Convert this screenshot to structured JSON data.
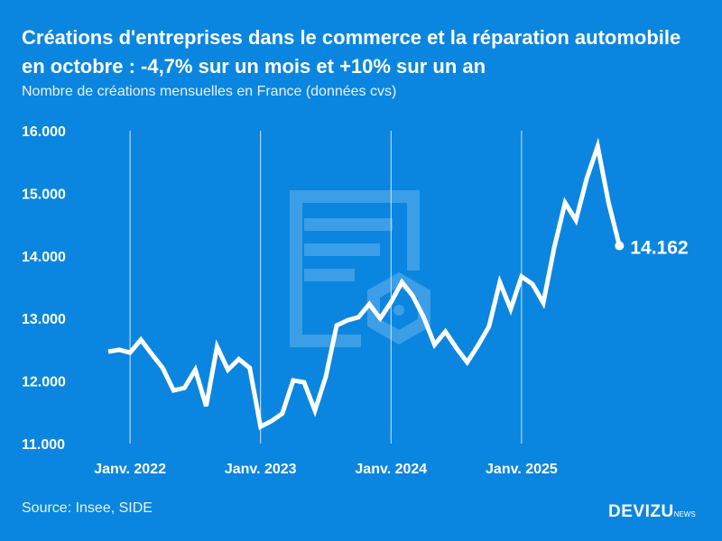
{
  "chart_data": {
    "type": "line",
    "title": "Créations d'entreprises dans le commerce et la réparation automobile en octobre : -4,7% sur un mois et +10% sur un an",
    "subtitle": "Nombre de créations mensuelles en France (données cvs)",
    "xlabel": "",
    "ylabel": "",
    "ylim": [
      11000,
      16000
    ],
    "yticks": [
      "11.000",
      "12.000",
      "13.000",
      "14.000",
      "15.000",
      "16.000"
    ],
    "xticks": [
      "Janv. 2022",
      "Janv. 2023",
      "Janv. 2024",
      "Janv. 2025"
    ],
    "x": [
      "2021-11",
      "2021-12",
      "2022-01",
      "2022-02",
      "2022-03",
      "2022-04",
      "2022-05",
      "2022-06",
      "2022-07",
      "2022-08",
      "2022-09",
      "2022-10",
      "2022-11",
      "2022-12",
      "2023-01",
      "2023-02",
      "2023-03",
      "2023-04",
      "2023-05",
      "2023-06",
      "2023-07",
      "2023-08",
      "2023-09",
      "2023-10",
      "2023-11",
      "2023-12",
      "2024-01",
      "2024-02",
      "2024-03",
      "2024-04",
      "2024-05",
      "2024-06",
      "2024-07",
      "2024-08",
      "2024-09",
      "2024-10",
      "2024-11",
      "2024-12",
      "2025-01",
      "2025-02",
      "2025-03",
      "2025-04",
      "2025-05",
      "2025-06",
      "2025-07",
      "2025-08",
      "2025-09",
      "2025-10"
    ],
    "values": [
      12470,
      12500,
      12455,
      12660,
      12430,
      12210,
      11850,
      11890,
      12180,
      11600,
      12550,
      12180,
      12350,
      12210,
      11270,
      11360,
      11480,
      12010,
      11980,
      11530,
      12070,
      12890,
      12970,
      13020,
      13230,
      13000,
      13260,
      13580,
      13360,
      13020,
      12580,
      12790,
      12530,
      12300,
      12570,
      12870,
      13580,
      13150,
      13670,
      13550,
      13250,
      14130,
      14850,
      14570,
      15240,
      15750,
      14850,
      14162
    ],
    "last_label": "14.162",
    "grid": "vertical lines at January",
    "line_color": "#ffffff",
    "background": "#0a86e0"
  },
  "source": "Source: Insee, SIDE",
  "logo": {
    "main": "DEVIZU",
    "suffix": "NEWS"
  }
}
